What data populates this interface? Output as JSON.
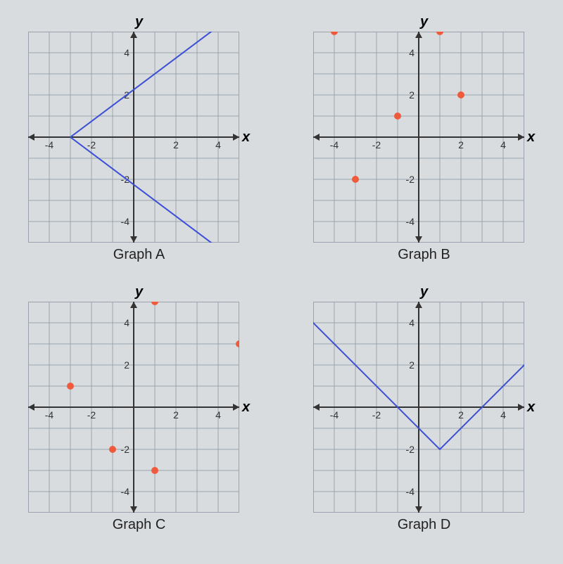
{
  "global": {
    "background": "#d8dcdf",
    "grid_color": "#9aa3ad",
    "axis_color": "#333333",
    "tick_label_color": "#333333",
    "line_color": "#3a4fd6",
    "point_color": "#ef5a3c",
    "x_label": "x",
    "y_label": "y"
  },
  "graphs": {
    "A": {
      "caption": "Graph A",
      "type": "line",
      "xlim": [
        -5,
        5
      ],
      "ylim": [
        -5,
        5
      ],
      "tick_step": 1,
      "x_tick_labels": [
        -4,
        -2,
        2,
        4
      ],
      "y_tick_labels": [
        -4,
        -2,
        2,
        4
      ],
      "lines": [
        {
          "points": [
            [
              -3,
              0
            ],
            [
              5,
              6
            ]
          ]
        },
        {
          "points": [
            [
              -3,
              0
            ],
            [
              5,
              -6
            ]
          ]
        }
      ],
      "line_width": 2
    },
    "B": {
      "caption": "Graph B",
      "type": "scatter",
      "xlim": [
        -5,
        5
      ],
      "ylim": [
        -5,
        5
      ],
      "tick_step": 1,
      "x_tick_labels": [
        -4,
        -2,
        2,
        4
      ],
      "y_tick_labels": [
        -4,
        -2,
        2,
        4
      ],
      "points": [
        [
          -4,
          5
        ],
        [
          -3,
          -2
        ],
        [
          -1,
          1
        ],
        [
          1,
          5
        ],
        [
          2,
          2
        ]
      ],
      "point_radius": 5
    },
    "C": {
      "caption": "Graph C",
      "type": "scatter",
      "xlim": [
        -5,
        5
      ],
      "ylim": [
        -5,
        5
      ],
      "tick_step": 1,
      "x_tick_labels": [
        -4,
        -2,
        2,
        4
      ],
      "y_tick_labels": [
        -4,
        -2,
        2,
        4
      ],
      "points": [
        [
          -3,
          1
        ],
        [
          -1,
          -2
        ],
        [
          1,
          5
        ],
        [
          1,
          -3
        ],
        [
          5,
          3
        ]
      ],
      "point_radius": 5
    },
    "D": {
      "caption": "Graph D",
      "type": "line",
      "xlim": [
        -5,
        5
      ],
      "ylim": [
        -5,
        5
      ],
      "tick_step": 1,
      "x_tick_labels": [
        -4,
        -2,
        2,
        4
      ],
      "y_tick_labels": [
        -4,
        -2,
        2,
        4
      ],
      "lines": [
        {
          "points": [
            [
              -6,
              5
            ],
            [
              1,
              -2
            ],
            [
              6,
              3
            ]
          ]
        }
      ],
      "line_width": 2
    }
  },
  "panel_size": 300
}
